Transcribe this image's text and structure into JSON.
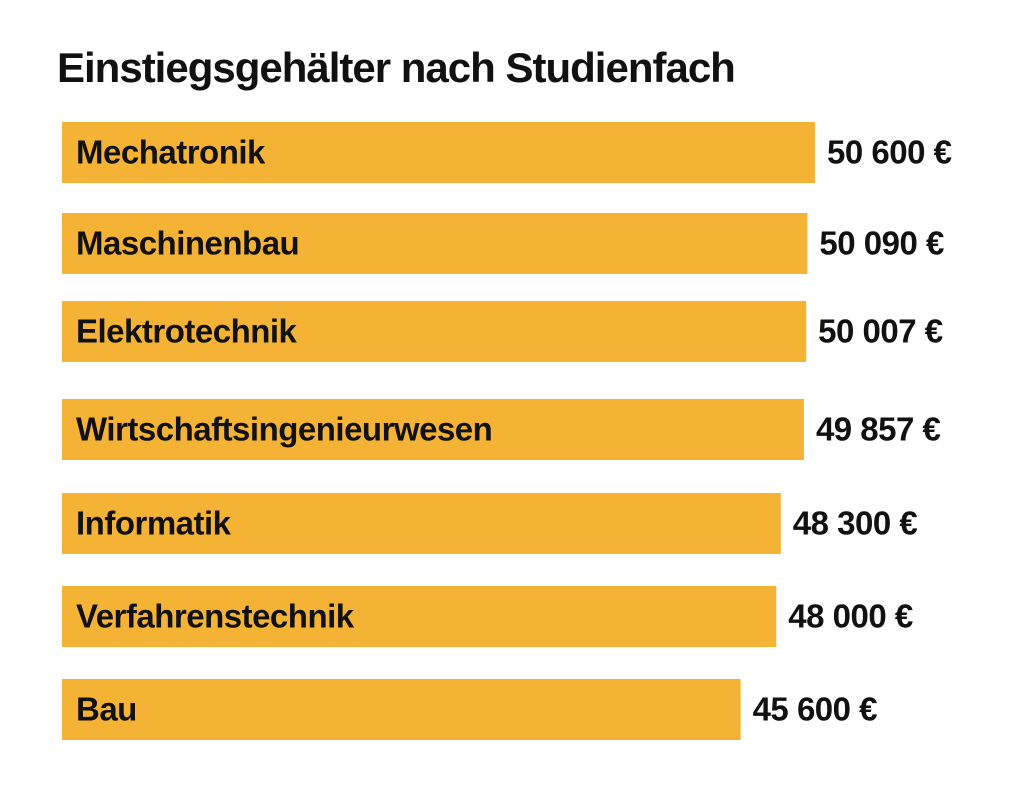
{
  "chart_data": {
    "type": "bar",
    "orientation": "horizontal",
    "title": "Einstiegsgehälter nach Studienfach",
    "bar_color": "#F5B335",
    "categories": [
      "Mechatronik",
      "Maschinenbau",
      "Elektrotechnik",
      "Wirtschaftsingenieurwesen",
      "Informatik",
      "Verfahrenstechnik",
      "Bau"
    ],
    "values": [
      50600,
      50090,
      50007,
      49857,
      48300,
      48000,
      45600
    ],
    "value_labels": [
      "50 600 €",
      "50 090 €",
      "50 007 €",
      "49 857 €",
      "48 300 €",
      "48 000 €",
      "45 600 €"
    ],
    "xlim": [
      0,
      50600
    ],
    "grid": false
  }
}
